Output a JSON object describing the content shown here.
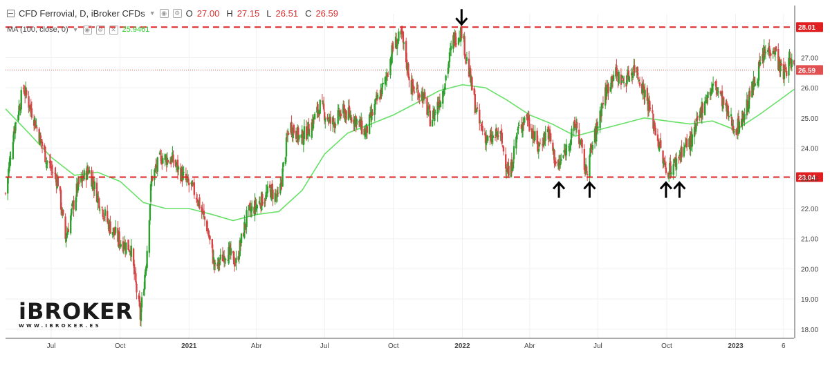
{
  "header": {
    "symbol": "CFD Ferrovial, D, iBroker CFDs",
    "o_label": "O",
    "o_value": "27.00",
    "h_label": "H",
    "h_value": "27.15",
    "l_label": "L",
    "l_value": "26.51",
    "c_label": "C",
    "c_value": "26.59"
  },
  "indicator": {
    "name": "MA (100, close, 0)",
    "value": "25.9461"
  },
  "logo": {
    "mark": "iBROKER",
    "sub": "WWW.IBROKER.ES"
  },
  "colors": {
    "up": "#26a69a",
    "up_body": "#2ca02c",
    "down": "#d64545",
    "ma": "#66e066",
    "resistance": "#e02020",
    "support": "#e02020",
    "last_price": "#e05050",
    "grid": "#eef0f3",
    "axis_text": "#444444"
  },
  "chart_data": {
    "type": "candlestick",
    "ylim": [
      17.7,
      28.45
    ],
    "y_ticks": [
      "18.00",
      "19.00",
      "20.00",
      "21.00",
      "22.00",
      "23.00",
      "24.00",
      "25.00",
      "26.00",
      "27.00"
    ],
    "x_ticks": [
      {
        "label": "Jul",
        "date": "2020-07-01",
        "bold": false
      },
      {
        "label": "Oct",
        "date": "2020-10-01",
        "bold": false
      },
      {
        "label": "2021",
        "date": "2021-01-01",
        "bold": true
      },
      {
        "label": "Abr",
        "date": "2021-04-01",
        "bold": false
      },
      {
        "label": "Jul",
        "date": "2021-07-01",
        "bold": false
      },
      {
        "label": "Oct",
        "date": "2021-10-01",
        "bold": false
      },
      {
        "label": "2022",
        "date": "2022-01-01",
        "bold": true
      },
      {
        "label": "Abr",
        "date": "2022-04-01",
        "bold": false
      },
      {
        "label": "Jul",
        "date": "2022-07-01",
        "bold": false
      },
      {
        "label": "Oct",
        "date": "2022-10-01",
        "bold": false
      },
      {
        "label": "2023",
        "date": "2023-01-01",
        "bold": true
      },
      {
        "label": "6",
        "date": "2023-03-06",
        "bold": false
      }
    ],
    "x_range": [
      "2020-05-01",
      "2023-03-20"
    ],
    "price_path": [
      {
        "date": "2020-05-01",
        "price": 22.5
      },
      {
        "date": "2020-05-12",
        "price": 24.6
      },
      {
        "date": "2020-05-25",
        "price": 26.0
      },
      {
        "date": "2020-06-08",
        "price": 25.0
      },
      {
        "date": "2020-06-25",
        "price": 23.6
      },
      {
        "date": "2020-07-10",
        "price": 22.9
      },
      {
        "date": "2020-07-20",
        "price": 21.0
      },
      {
        "date": "2020-08-05",
        "price": 22.7
      },
      {
        "date": "2020-08-20",
        "price": 23.3
      },
      {
        "date": "2020-09-01",
        "price": 22.4
      },
      {
        "date": "2020-09-15",
        "price": 21.5
      },
      {
        "date": "2020-10-01",
        "price": 20.9
      },
      {
        "date": "2020-10-15",
        "price": 20.7
      },
      {
        "date": "2020-10-28",
        "price": 18.4
      },
      {
        "date": "2020-11-05",
        "price": 20.3
      },
      {
        "date": "2020-11-12",
        "price": 23.0
      },
      {
        "date": "2020-11-25",
        "price": 23.7
      },
      {
        "date": "2020-12-10",
        "price": 23.6
      },
      {
        "date": "2020-12-28",
        "price": 22.9
      },
      {
        "date": "2021-01-10",
        "price": 22.5
      },
      {
        "date": "2021-01-25",
        "price": 21.4
      },
      {
        "date": "2021-02-05",
        "price": 20.0
      },
      {
        "date": "2021-02-20",
        "price": 20.6
      },
      {
        "date": "2021-03-05",
        "price": 20.2
      },
      {
        "date": "2021-03-20",
        "price": 21.8
      },
      {
        "date": "2021-04-05",
        "price": 22.2
      },
      {
        "date": "2021-04-20",
        "price": 22.6
      },
      {
        "date": "2021-05-01",
        "price": 22.3
      },
      {
        "date": "2021-05-15",
        "price": 24.8
      },
      {
        "date": "2021-05-30",
        "price": 24.3
      },
      {
        "date": "2021-06-12",
        "price": 24.7
      },
      {
        "date": "2021-06-25",
        "price": 25.4
      },
      {
        "date": "2021-07-10",
        "price": 24.8
      },
      {
        "date": "2021-07-25",
        "price": 25.2
      },
      {
        "date": "2021-08-10",
        "price": 25.0
      },
      {
        "date": "2021-08-25",
        "price": 24.5
      },
      {
        "date": "2021-09-08",
        "price": 25.5
      },
      {
        "date": "2021-09-20",
        "price": 26.2
      },
      {
        "date": "2021-10-01",
        "price": 27.4
      },
      {
        "date": "2021-10-12",
        "price": 27.7
      },
      {
        "date": "2021-10-25",
        "price": 26.0
      },
      {
        "date": "2021-11-08",
        "price": 25.8
      },
      {
        "date": "2021-11-20",
        "price": 24.9
      },
      {
        "date": "2021-12-05",
        "price": 25.8
      },
      {
        "date": "2021-12-20",
        "price": 27.6
      },
      {
        "date": "2021-12-31",
        "price": 27.9
      },
      {
        "date": "2022-01-10",
        "price": 26.5
      },
      {
        "date": "2022-01-22",
        "price": 24.9
      },
      {
        "date": "2022-02-05",
        "price": 24.2
      },
      {
        "date": "2022-02-20",
        "price": 24.5
      },
      {
        "date": "2022-03-05",
        "price": 23.0
      },
      {
        "date": "2022-03-15",
        "price": 24.5
      },
      {
        "date": "2022-03-28",
        "price": 25.1
      },
      {
        "date": "2022-04-12",
        "price": 24.0
      },
      {
        "date": "2022-04-25",
        "price": 24.6
      },
      {
        "date": "2022-05-08",
        "price": 23.3
      },
      {
        "date": "2022-05-20",
        "price": 24.0
      },
      {
        "date": "2022-06-02",
        "price": 24.8
      },
      {
        "date": "2022-06-15",
        "price": 23.2
      },
      {
        "date": "2022-06-28",
        "price": 24.5
      },
      {
        "date": "2022-07-08",
        "price": 25.6
      },
      {
        "date": "2022-07-22",
        "price": 26.5
      },
      {
        "date": "2022-08-05",
        "price": 26.2
      },
      {
        "date": "2022-08-20",
        "price": 26.7
      },
      {
        "date": "2022-09-05",
        "price": 25.6
      },
      {
        "date": "2022-09-18",
        "price": 24.4
      },
      {
        "date": "2022-09-30",
        "price": 23.2
      },
      {
        "date": "2022-10-12",
        "price": 23.5
      },
      {
        "date": "2022-10-22",
        "price": 24.0
      },
      {
        "date": "2022-11-05",
        "price": 24.3
      },
      {
        "date": "2022-11-20",
        "price": 25.6
      },
      {
        "date": "2022-12-05",
        "price": 26.1
      },
      {
        "date": "2022-12-20",
        "price": 25.2
      },
      {
        "date": "2023-01-01",
        "price": 24.6
      },
      {
        "date": "2023-01-12",
        "price": 25.1
      },
      {
        "date": "2023-01-25",
        "price": 26.1
      },
      {
        "date": "2023-02-08",
        "price": 27.1
      },
      {
        "date": "2023-02-20",
        "price": 27.4
      },
      {
        "date": "2023-03-05",
        "price": 26.4
      },
      {
        "date": "2023-03-15",
        "price": 26.9
      },
      {
        "date": "2023-03-20",
        "price": 26.59
      }
    ],
    "moving_average": {
      "name": "MA (100, close, 0)",
      "points": [
        {
          "date": "2020-05-01",
          "price": 25.3
        },
        {
          "date": "2020-06-01",
          "price": 24.5
        },
        {
          "date": "2020-07-01",
          "price": 23.7
        },
        {
          "date": "2020-08-01",
          "price": 23.1
        },
        {
          "date": "2020-09-01",
          "price": 23.2
        },
        {
          "date": "2020-10-01",
          "price": 22.9
        },
        {
          "date": "2020-11-01",
          "price": 22.2
        },
        {
          "date": "2020-12-01",
          "price": 22.0
        },
        {
          "date": "2021-01-01",
          "price": 22.0
        },
        {
          "date": "2021-02-01",
          "price": 21.8
        },
        {
          "date": "2021-03-01",
          "price": 21.6
        },
        {
          "date": "2021-04-01",
          "price": 21.8
        },
        {
          "date": "2021-05-01",
          "price": 21.9
        },
        {
          "date": "2021-06-01",
          "price": 22.6
        },
        {
          "date": "2021-07-01",
          "price": 23.8
        },
        {
          "date": "2021-08-01",
          "price": 24.5
        },
        {
          "date": "2021-09-01",
          "price": 24.8
        },
        {
          "date": "2021-10-01",
          "price": 25.1
        },
        {
          "date": "2021-11-01",
          "price": 25.5
        },
        {
          "date": "2021-12-01",
          "price": 25.9
        },
        {
          "date": "2022-01-01",
          "price": 26.1
        },
        {
          "date": "2022-02-01",
          "price": 26.0
        },
        {
          "date": "2022-03-01",
          "price": 25.6
        },
        {
          "date": "2022-04-01",
          "price": 25.1
        },
        {
          "date": "2022-05-01",
          "price": 24.8
        },
        {
          "date": "2022-06-01",
          "price": 24.4
        },
        {
          "date": "2022-07-01",
          "price": 24.6
        },
        {
          "date": "2022-08-01",
          "price": 24.8
        },
        {
          "date": "2022-09-01",
          "price": 25.0
        },
        {
          "date": "2022-10-01",
          "price": 24.9
        },
        {
          "date": "2022-11-01",
          "price": 24.8
        },
        {
          "date": "2022-12-01",
          "price": 24.9
        },
        {
          "date": "2023-01-01",
          "price": 24.6
        },
        {
          "date": "2023-02-01",
          "price": 25.1
        },
        {
          "date": "2023-03-01",
          "price": 25.6
        },
        {
          "date": "2023-03-20",
          "price": 25.9461
        }
      ]
    },
    "horizontal_lines": [
      {
        "value": 28.01,
        "label": "28.01",
        "style": "dashed"
      },
      {
        "value": 23.04,
        "label": "23.04",
        "style": "dashed"
      },
      {
        "value": 26.59,
        "label": "26.59",
        "style": "dotted"
      }
    ],
    "annotations": [
      {
        "type": "arrow-down",
        "date": "2021-12-31",
        "value": 28.01
      },
      {
        "type": "arrow-up",
        "date": "2022-05-10",
        "value": 23.04
      },
      {
        "type": "arrow-up",
        "date": "2022-06-20",
        "value": 23.04
      },
      {
        "type": "arrow-up",
        "date": "2022-09-30",
        "value": 23.04
      },
      {
        "type": "arrow-up",
        "date": "2022-10-18",
        "value": 23.04
      }
    ],
    "grid": true
  }
}
